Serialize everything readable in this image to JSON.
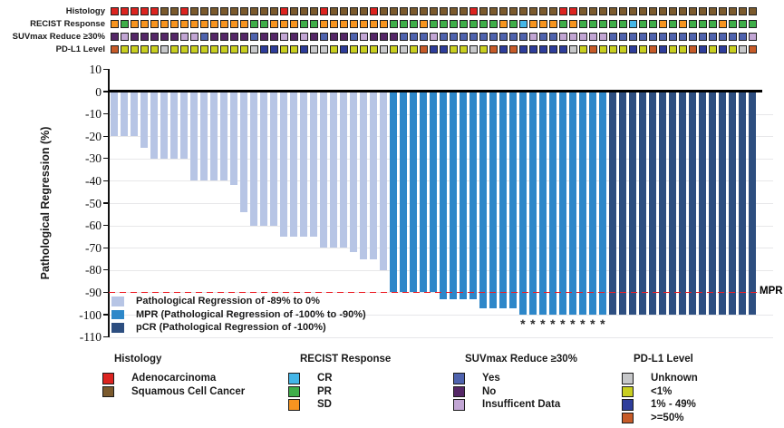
{
  "colors": {
    "bar_light": "#b7c5e5",
    "bar_mpr": "#2d87c9",
    "bar_pcr": "#2d4e80",
    "dashed_line": "#ed1c24",
    "axis": "#111111",
    "grid": "#e7e7e9"
  },
  "tracks": [
    {
      "label": "Histology",
      "palette": {
        "R": "#dc2420",
        "B": "#7b5a2d"
      },
      "seq": "RRRRRBBRBBBBBBBBBRBBBRBBBBRBBBBBBBBBRBBBBBBBBRRBBBBBBBBBBBBBBBBBB"
    },
    {
      "label": "RECIST Response",
      "palette": {
        "O": "#f79420",
        "G": "#3fae49",
        "C": "#44b6e8"
      },
      "seq": "OGOOOOOOOOOOOOGGOOOGGOOOOOOOGGGOGGGGGGGOGCOOOGOGGGGGCGGOGOGGGOGGG"
    },
    {
      "label": "SUVmax Reduce ≥30%",
      "palette": {
        "B": "#4f63ae",
        "P": "#552767",
        "L": "#c2a6d4"
      },
      "seq": "PLPPPPPLLBPPPPBPPLPLPBPPBLPPPBBBLBBBBBBBBBLBBLLLLLBBBBBBBBBBBBBBL"
    },
    {
      "label": "PD-L1 Level",
      "palette": {
        "G": "#c6c7c9",
        "Y": "#c9cf20",
        "N": "#2e3d9b",
        "O": "#c75b28"
      },
      "seq": "OYYYYGYYYYYYYYGNNYYNGGYNYYYGYGYONNYYGYONONNNNNGYOYYYNYONYYONYNYGO"
    }
  ],
  "chart_data": {
    "type": "bar",
    "title": "",
    "xlabel": "",
    "ylabel": "Pathological Regression (%)",
    "ylim": [
      -110,
      10
    ],
    "yticks": [
      10,
      0,
      -10,
      -20,
      -30,
      -40,
      -50,
      -60,
      -70,
      -80,
      -90,
      -100,
      -110
    ],
    "grid": "horizontal-light",
    "reference_line": {
      "value": -90,
      "label": "MPR",
      "style": "dashed-red"
    },
    "group_sizes": [
      28,
      22,
      15
    ],
    "group_color_keys": [
      "bar_light",
      "bar_mpr",
      "bar_pcr"
    ],
    "values": [
      -20,
      -20,
      -20,
      -25,
      -30,
      -30,
      -30,
      -30,
      -40,
      -40,
      -40,
      -40,
      -42,
      -54,
      -60,
      -60,
      -60,
      -65,
      -65,
      -65,
      -65,
      -70,
      -70,
      -70,
      -72,
      -75,
      -75,
      -80,
      -90,
      -90,
      -90,
      -90,
      -90,
      -93,
      -93,
      -93,
      -93,
      -97,
      -97,
      -97,
      -97,
      -100,
      -100,
      -100,
      -100,
      -100,
      -100,
      -100,
      -100,
      -100,
      -100,
      -100,
      -100,
      -100,
      -100,
      -100,
      -100,
      -100,
      -100,
      -100,
      -100,
      -100,
      -100,
      -100,
      -100
    ],
    "asterisk_bars": [
      42,
      43,
      44,
      45,
      46,
      47,
      48,
      49,
      50
    ],
    "asterisk_symbol": "*"
  },
  "plot_legend": {
    "items": [
      {
        "label": "Pathological Regression of -89% to 0%",
        "color_key": "bar_light"
      },
      {
        "label": "MPR (Pathological Regression of -100% to -90%)",
        "color_key": "bar_mpr"
      },
      {
        "label": "pCR (Pathological Regression of -100%)",
        "color_key": "bar_pcr"
      }
    ]
  },
  "bottom_legend": {
    "groups": [
      {
        "header": "Histology",
        "items": [
          {
            "label": "Adenocarcinoma",
            "color": "#dc2420"
          },
          {
            "label": "Squamous Cell Cancer",
            "color": "#7b5a2d"
          }
        ]
      },
      {
        "header": "RECIST Response",
        "items": [
          {
            "label": "CR",
            "color": "#44b6e8"
          },
          {
            "label": "PR",
            "color": "#3fae49"
          },
          {
            "label": "SD",
            "color": "#f79420"
          }
        ]
      },
      {
        "header": "SUVmax Reduce ≥30%",
        "items": [
          {
            "label": "Yes",
            "color": "#4f63ae"
          },
          {
            "label": "No",
            "color": "#552767"
          },
          {
            "label": "Insufficent Data",
            "color": "#c2a6d4"
          }
        ]
      },
      {
        "header": "PD-L1 Level",
        "items": [
          {
            "label": "Unknown",
            "color": "#c6c7c9"
          },
          {
            "label": "<1%",
            "color": "#c9cf20"
          },
          {
            "label": "1% - 49%",
            "color": "#2e3d9b"
          },
          {
            "label": ">=50%",
            "color": "#c75b28"
          }
        ]
      }
    ]
  }
}
